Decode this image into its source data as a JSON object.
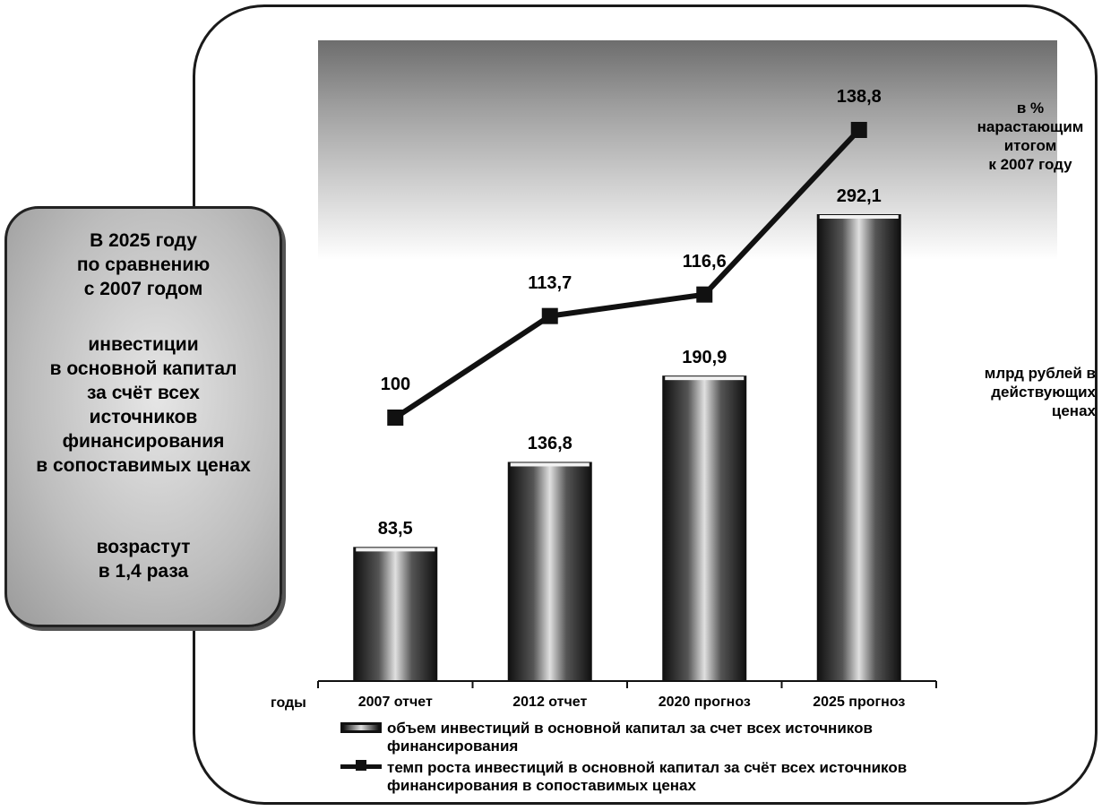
{
  "left_box": {
    "line1": "В 2025 году",
    "line2": "по сравнению",
    "line3": "с 2007 годом",
    "line4": "инвестиции",
    "line5": "в основной капитал",
    "line6": "за счёт всех",
    "line7": "источников",
    "line8": "финансирования",
    "line9": "в сопоставимых ценах",
    "line10": "возрастут",
    "line11": "в 1,4 раза"
  },
  "units": {
    "line_l1": "в %",
    "line_l2": "нарастающим",
    "line_l3": "итогом",
    "line_l4": "к 2007 году",
    "bar_l1": "млрд рублей в",
    "bar_l2": "действующих",
    "bar_l3": "ценах"
  },
  "axis": {
    "x_title": "годы"
  },
  "legend": {
    "bar_text_1": "объем инвестиций в основной капитал за счет всех источников",
    "bar_text_2": "финансирования",
    "line_text_1": "темп роста инвестиций в основной капитал за счёт всех источников",
    "line_text_2": "финансирования в сопоставимых ценах"
  },
  "chart_data": {
    "type": "bar",
    "categories": [
      "2007 отчет",
      "2012 отчет",
      "2020 прогноз",
      "2025 прогноз"
    ],
    "series": [
      {
        "name": "объем инвестиций в основной капитал за счет всех источников финансирования",
        "type": "bar",
        "values": [
          83.5,
          136.8,
          190.9,
          292.1
        ],
        "labels": [
          "83,5",
          "136,8",
          "190,9",
          "292,1"
        ]
      },
      {
        "name": "темп роста инвестиций в основной капитал за счёт всех источников финансирования в сопоставимых ценах",
        "type": "line",
        "values": [
          100,
          113.7,
          116.6,
          138.8
        ],
        "labels": [
          "100",
          "113,7",
          "116,6",
          "138,8"
        ]
      }
    ],
    "colors": {
      "bar_dark": "#111111",
      "bar_light": "#e0e0e0",
      "line": "#111111"
    }
  }
}
